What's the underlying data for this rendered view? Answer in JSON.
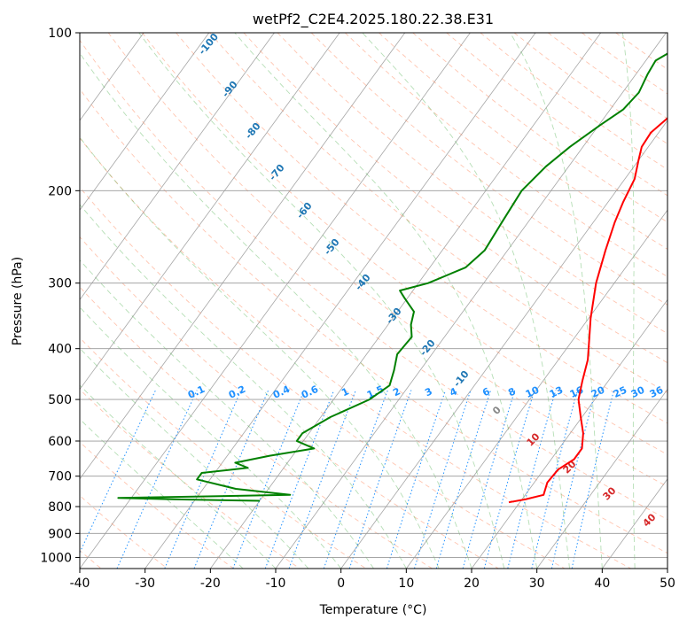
{
  "chart_data": {
    "type": "line",
    "title": "wetPf2_C2E4.2025.180.22.38.E31",
    "xlabel": "Temperature (°C)",
    "ylabel": "Pressure (hPa)",
    "xlim": [
      -40,
      50
    ],
    "ylim": [
      1050,
      100
    ],
    "y_scale": "log",
    "x_ticks": [
      "-40",
      "-30",
      "-20",
      "-10",
      "0",
      "10",
      "20",
      "30",
      "40",
      "50"
    ],
    "y_ticks": [
      "100",
      "200",
      "300",
      "400",
      "500",
      "600",
      "700",
      "800",
      "900",
      "1000"
    ],
    "grid": true,
    "series": [
      {
        "name": "",
        "color": "#ff0000",
        "points": [
          {
            "p": 100,
            "t": 5.0
          },
          {
            "p": 110,
            "t": 6.0
          },
          {
            "p": 118,
            "t": 6.3
          },
          {
            "p": 125,
            "t": 4.5
          },
          {
            "p": 135,
            "t": 1.5
          },
          {
            "p": 145,
            "t": -0.2
          },
          {
            "p": 155,
            "t": -1.2
          },
          {
            "p": 165,
            "t": -1.0
          },
          {
            "p": 175,
            "t": 0.0
          },
          {
            "p": 190,
            "t": 1.5
          },
          {
            "p": 210,
            "t": 2.3
          },
          {
            "p": 230,
            "t": 3.3
          },
          {
            "p": 260,
            "t": 5.0
          },
          {
            "p": 300,
            "t": 7.2
          },
          {
            "p": 350,
            "t": 10.3
          },
          {
            "p": 380,
            "t": 12.2
          },
          {
            "p": 420,
            "t": 14.5
          },
          {
            "p": 460,
            "t": 16.0
          },
          {
            "p": 500,
            "t": 17.5
          },
          {
            "p": 540,
            "t": 19.8
          },
          {
            "p": 580,
            "t": 22.0
          },
          {
            "p": 620,
            "t": 23.5
          },
          {
            "p": 650,
            "t": 23.5
          },
          {
            "p": 680,
            "t": 22.2
          },
          {
            "p": 720,
            "t": 22.0
          },
          {
            "p": 760,
            "t": 22.8
          },
          {
            "p": 775,
            "t": 20.5
          },
          {
            "p": 785,
            "t": 18.3
          }
        ]
      },
      {
        "name": "",
        "color": "#008000",
        "points": [
          {
            "p": 100,
            "t": -4.0
          },
          {
            "p": 105,
            "t": -6.0
          },
          {
            "p": 113,
            "t": -8.5
          },
          {
            "p": 120,
            "t": -8.2
          },
          {
            "p": 130,
            "t": -7.5
          },
          {
            "p": 140,
            "t": -8.0
          },
          {
            "p": 150,
            "t": -9.8
          },
          {
            "p": 165,
            "t": -12.0
          },
          {
            "p": 180,
            "t": -13.5
          },
          {
            "p": 200,
            "t": -14.5
          },
          {
            "p": 230,
            "t": -14.0
          },
          {
            "p": 260,
            "t": -13.5
          },
          {
            "p": 280,
            "t": -14.5
          },
          {
            "p": 300,
            "t": -18.5
          },
          {
            "p": 310,
            "t": -22.0
          },
          {
            "p": 320,
            "t": -20.5
          },
          {
            "p": 340,
            "t": -17.5
          },
          {
            "p": 360,
            "t": -16.5
          },
          {
            "p": 380,
            "t": -15.0
          },
          {
            "p": 410,
            "t": -15.3
          },
          {
            "p": 440,
            "t": -14.0
          },
          {
            "p": 470,
            "t": -13.0
          },
          {
            "p": 500,
            "t": -14.5
          },
          {
            "p": 540,
            "t": -18.5
          },
          {
            "p": 580,
            "t": -21.0
          },
          {
            "p": 600,
            "t": -21.0
          },
          {
            "p": 620,
            "t": -17.5
          },
          {
            "p": 640,
            "t": -23.5
          },
          {
            "p": 660,
            "t": -28.0
          },
          {
            "p": 675,
            "t": -25.5
          },
          {
            "p": 690,
            "t": -32.0
          },
          {
            "p": 710,
            "t": -32.0
          },
          {
            "p": 740,
            "t": -25.0
          },
          {
            "p": 760,
            "t": -16.0
          },
          {
            "p": 770,
            "t": -42.0
          },
          {
            "p": 775,
            "t": -33.0
          },
          {
            "p": 780,
            "t": -20.0
          }
        ]
      }
    ],
    "mixing_ratio_labels": [
      "0.1",
      "0.2",
      "0.4",
      "0.6",
      "1",
      "1.5",
      "2",
      "3",
      "4",
      "6",
      "8",
      "10",
      "13",
      "16",
      "20",
      "25",
      "30",
      "36"
    ],
    "dry_adiabat_labels": [
      "-100",
      "-90",
      "-80",
      "-70",
      "-60",
      "-50",
      "-40",
      "-30",
      "-20",
      "-10"
    ],
    "moist_adiabat_labels": [
      "0",
      "10",
      "20",
      "30",
      "40"
    ]
  }
}
